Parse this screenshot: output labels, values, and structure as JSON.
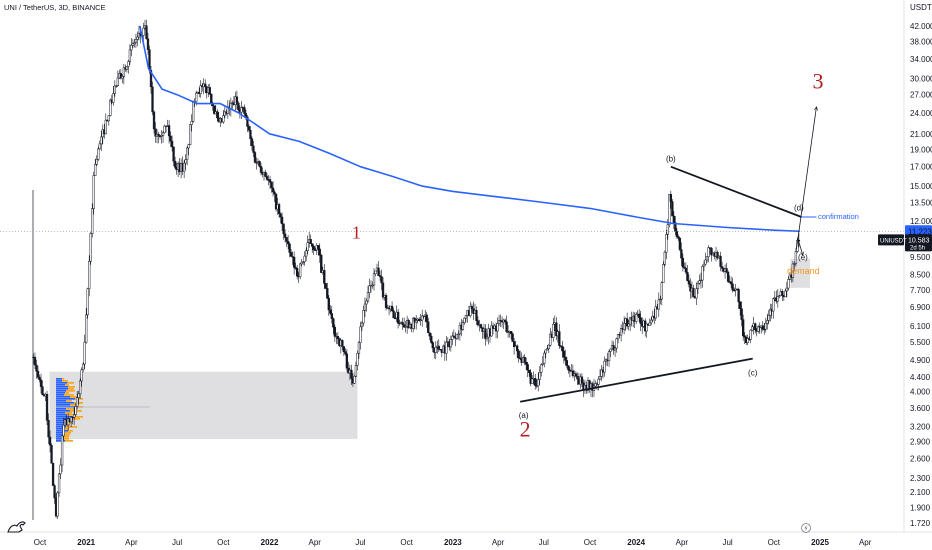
{
  "title": "UNI / TetherUS, 3D, BINANCE",
  "currency": "USDT",
  "symbol_tag": "UNIUSDT",
  "price_line_label": "11.223",
  "last_price_label": "10.583",
  "countdown_label": "2d 5h",
  "colors": {
    "up_candle": "#ffffff",
    "candle_outline": "#131722",
    "ma_line": "#2962ff",
    "annotation_red": "#b22222",
    "demand_orange": "#f7931a",
    "zone_gray": "#d9d9dc",
    "tag_dark": "#131722",
    "profile_blue": "#2962ff",
    "profile_orange": "#f5a623"
  },
  "icons": [
    "tradingview-logo-icon",
    "lightning-icon"
  ],
  "chart_data": {
    "type": "candlestick",
    "yscale": "log",
    "ylim": [
      1.55,
      52
    ],
    "y_ticks": [
      1.72,
      1.9,
      2.1,
      2.3,
      2.6,
      2.9,
      3.2,
      3.6,
      4.0,
      4.4,
      4.9,
      5.5,
      6.1,
      6.9,
      7.7,
      8.5,
      9.5,
      11.223,
      12.0,
      13.5,
      15.0,
      17.0,
      19.0,
      21.0,
      24.0,
      27.0,
      30.0,
      34.0,
      38.0,
      42.0
    ],
    "y_tick_labels": [
      "1.720",
      "1.900",
      "2.100",
      "2.300",
      "2.600",
      "2.900",
      "3.200",
      "3.600",
      "4.000",
      "4.400",
      "4.900",
      "5.500",
      "6.100",
      "6.900",
      "7.700",
      "8.500",
      "9.500",
      "11.223",
      "12.000",
      "13.500",
      "15.000",
      "17.000",
      "19.000",
      "21.000",
      "24.000",
      "27.000",
      "30.000",
      "34.000",
      "38.000",
      "42.000"
    ],
    "x_ticks": [
      "2020-10-01",
      "2021-01-01",
      "2021-04-01",
      "2021-07-01",
      "2021-10-01",
      "2022-01-01",
      "2022-04-01",
      "2022-07-01",
      "2022-10-01",
      "2023-01-01",
      "2023-04-01",
      "2023-07-01",
      "2023-10-01",
      "2024-01-01",
      "2024-04-01",
      "2024-07-01",
      "2024-10-01",
      "2025-01-01",
      "2025-04-01"
    ],
    "x_tick_labels": [
      "Oct",
      "2021",
      "Apr",
      "Jul",
      "Oct",
      "2022",
      "Apr",
      "Jul",
      "Oct",
      "2023",
      "Apr",
      "Jul",
      "Oct",
      "2024",
      "Apr",
      "Jul",
      "Oct",
      "2025",
      "Apr"
    ],
    "price_anchors": [
      [
        "2020-09-18",
        5.0
      ],
      [
        "2020-10-15",
        3.8
      ],
      [
        "2020-11-05",
        1.8
      ],
      [
        "2020-11-20",
        3.3
      ],
      [
        "2020-12-10",
        3.3
      ],
      [
        "2020-12-31",
        5.0
      ],
      [
        "2021-01-20",
        17.0
      ],
      [
        "2021-02-10",
        22.0
      ],
      [
        "2021-03-01",
        28.0
      ],
      [
        "2021-03-20",
        32.0
      ],
      [
        "2021-04-10",
        38.0
      ],
      [
        "2021-05-03",
        41.0
      ],
      [
        "2021-05-20",
        21.0
      ],
      [
        "2021-06-15",
        22.0
      ],
      [
        "2021-07-01",
        17.0
      ],
      [
        "2021-07-20",
        17.0
      ],
      [
        "2021-08-10",
        28.0
      ],
      [
        "2021-09-05",
        28.0
      ],
      [
        "2021-09-25",
        22.0
      ],
      [
        "2021-10-10",
        24.0
      ],
      [
        "2021-10-28",
        26.0
      ],
      [
        "2021-11-15",
        24.0
      ],
      [
        "2021-12-05",
        18.0
      ],
      [
        "2021-12-30",
        16.0
      ],
      [
        "2022-01-20",
        13.0
      ],
      [
        "2022-02-10",
        10.0
      ],
      [
        "2022-03-01",
        8.5
      ],
      [
        "2022-03-25",
        10.5
      ],
      [
        "2022-04-10",
        10.0
      ],
      [
        "2022-05-10",
        6.0
      ],
      [
        "2022-05-30",
        5.3
      ],
      [
        "2022-06-18",
        4.2
      ],
      [
        "2022-07-10",
        6.8
      ],
      [
        "2022-08-05",
        8.8
      ],
      [
        "2022-08-25",
        7.0
      ],
      [
        "2022-09-20",
        6.3
      ],
      [
        "2022-10-20",
        6.2
      ],
      [
        "2022-11-08",
        6.5
      ],
      [
        "2022-11-25",
        5.3
      ],
      [
        "2022-12-20",
        5.3
      ],
      [
        "2023-01-15",
        6.0
      ],
      [
        "2023-02-10",
        6.8
      ],
      [
        "2023-03-10",
        5.8
      ],
      [
        "2023-04-15",
        6.3
      ],
      [
        "2023-05-10",
        5.3
      ],
      [
        "2023-06-10",
        4.3
      ],
      [
        "2023-06-20",
        4.1
      ],
      [
        "2023-07-10",
        5.4
      ],
      [
        "2023-07-25",
        6.1
      ],
      [
        "2023-08-20",
        4.7
      ],
      [
        "2023-09-20",
        4.2
      ],
      [
        "2023-10-15",
        4.1
      ],
      [
        "2023-11-10",
        5.0
      ],
      [
        "2023-12-10",
        6.2
      ],
      [
        "2024-01-05",
        6.5
      ],
      [
        "2024-01-25",
        6.0
      ],
      [
        "2024-02-20",
        7.2
      ],
      [
        "2024-03-05",
        11.0
      ],
      [
        "2024-03-10",
        14.0
      ],
      [
        "2024-03-25",
        11.0
      ],
      [
        "2024-04-15",
        8.0
      ],
      [
        "2024-05-01",
        7.3
      ],
      [
        "2024-05-25",
        10.0
      ],
      [
        "2024-06-15",
        9.6
      ],
      [
        "2024-07-05",
        8.3
      ],
      [
        "2024-07-25",
        7.5
      ],
      [
        "2024-08-05",
        5.5
      ],
      [
        "2024-08-25",
        6.0
      ],
      [
        "2024-09-15",
        6.2
      ],
      [
        "2024-10-05",
        7.2
      ],
      [
        "2024-10-25",
        7.5
      ],
      [
        "2024-11-08",
        8.5
      ],
      [
        "2024-11-22",
        10.583
      ]
    ],
    "moving_average": {
      "name": "",
      "points": [
        [
          "2021-04-18",
          42.0
        ],
        [
          "2021-05-05",
          32.0
        ],
        [
          "2021-06-01",
          28.0
        ],
        [
          "2021-07-01",
          27.0
        ],
        [
          "2021-08-10",
          25.5
        ],
        [
          "2021-09-25",
          25.5
        ],
        [
          "2021-11-01",
          24.0
        ],
        [
          "2022-01-01",
          21.0
        ],
        [
          "2022-03-01",
          20.0
        ],
        [
          "2022-05-01",
          18.5
        ],
        [
          "2022-07-01",
          17.0
        ],
        [
          "2022-09-01",
          16.0
        ],
        [
          "2022-11-01",
          15.0
        ],
        [
          "2023-01-01",
          14.5
        ],
        [
          "2023-04-01",
          14.0
        ],
        [
          "2023-07-01",
          13.5
        ],
        [
          "2023-10-01",
          13.0
        ],
        [
          "2024-01-01",
          12.3
        ],
        [
          "2024-03-15",
          11.8
        ],
        [
          "2024-07-01",
          11.5
        ],
        [
          "2024-10-01",
          11.3
        ],
        [
          "2024-11-22",
          11.223
        ]
      ]
    },
    "trendlines": [
      {
        "from": [
          "2024-03-10",
          17.0
        ],
        "to": [
          "2024-11-25",
          12.3
        ]
      },
      {
        "from": [
          "2023-05-15",
          3.75
        ],
        "to": [
          "2024-08-20",
          4.95
        ]
      },
      {
        "from": [
          "2024-11-15",
          10.0
        ],
        "to": [
          "2024-12-25",
          25.0
        ],
        "arrow": true
      }
    ],
    "zones": [
      {
        "name": "demand-range",
        "x0": "2020-10-20",
        "x1": "2022-06-25",
        "y0": 2.95,
        "y1": 4.55
      },
      {
        "name": "demand-box",
        "x0": "2024-11-03",
        "x1": "2024-12-12",
        "y0": 7.8,
        "y1": 9.4
      }
    ],
    "horizontal_lines": [
      {
        "name": "confirmation",
        "x0": "2024-11-25",
        "x1": "2024-12-25",
        "y": 12.3
      }
    ],
    "annotations": [
      {
        "text": "1",
        "at": [
          "2022-06-23",
          11.0
        ]
      },
      {
        "text": "2",
        "at": [
          "2023-05-25",
          3.1
        ]
      },
      {
        "text": "3",
        "at": [
          "2024-12-28",
          29.0
        ]
      },
      {
        "text": "(a)",
        "at": [
          "2023-05-22",
          3.42
        ]
      },
      {
        "text": "(b)",
        "at": [
          "2024-03-10",
          17.8
        ]
      },
      {
        "text": "(c)",
        "at": [
          "2024-08-20",
          4.5
        ]
      },
      {
        "text": "(d)",
        "at": [
          "2024-11-20",
          13.0
        ]
      },
      {
        "text": "(e)",
        "at": [
          "2024-11-28",
          9.45
        ]
      },
      {
        "text": "demand",
        "at": [
          "2024-11-29",
          8.65
        ]
      },
      {
        "text": "confirmation",
        "at": [
          "2024-12-28",
          12.3
        ]
      }
    ]
  }
}
